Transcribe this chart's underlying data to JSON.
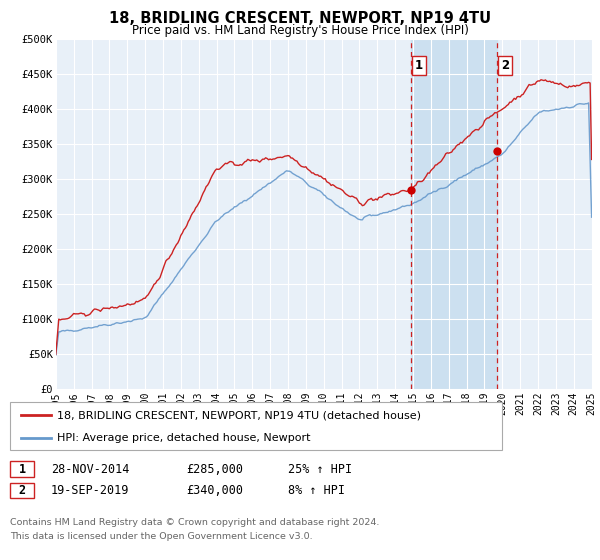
{
  "title": "18, BRIDLING CRESCENT, NEWPORT, NP19 4TU",
  "subtitle": "Price paid vs. HM Land Registry's House Price Index (HPI)",
  "legend_line1": "18, BRIDLING CRESCENT, NEWPORT, NP19 4TU (detached house)",
  "legend_line2": "HPI: Average price, detached house, Newport",
  "footnote1": "Contains HM Land Registry data © Crown copyright and database right 2024.",
  "footnote2": "This data is licensed under the Open Government Licence v3.0.",
  "sale1_date": "28-NOV-2014",
  "sale1_price": "£285,000",
  "sale1_hpi": "25% ↑ HPI",
  "sale2_date": "19-SEP-2019",
  "sale2_price": "£340,000",
  "sale2_hpi": "8% ↑ HPI",
  "sale1_x": 2014.91,
  "sale1_y": 285000,
  "sale2_x": 2019.72,
  "sale2_y": 340000,
  "hpi_color": "#6699cc",
  "price_color": "#cc2222",
  "sale_marker_color": "#cc0000",
  "vline_color": "#cc2222",
  "span_color": "#cce0f0",
  "plot_bg": "#e8f0f8",
  "grid_color": "#ffffff",
  "ylim": [
    0,
    500000
  ],
  "xlim_start": 1995,
  "xlim_end": 2025,
  "yticks": [
    0,
    50000,
    100000,
    150000,
    200000,
    250000,
    300000,
    350000,
    400000,
    450000,
    500000
  ],
  "ytick_labels": [
    "£0",
    "£50K",
    "£100K",
    "£150K",
    "£200K",
    "£250K",
    "£300K",
    "£350K",
    "£400K",
    "£450K",
    "£500K"
  ],
  "xticks": [
    1995,
    1996,
    1997,
    1998,
    1999,
    2000,
    2001,
    2002,
    2003,
    2004,
    2005,
    2006,
    2007,
    2008,
    2009,
    2010,
    2011,
    2012,
    2013,
    2014,
    2015,
    2016,
    2017,
    2018,
    2019,
    2020,
    2021,
    2022,
    2023,
    2024,
    2025
  ]
}
